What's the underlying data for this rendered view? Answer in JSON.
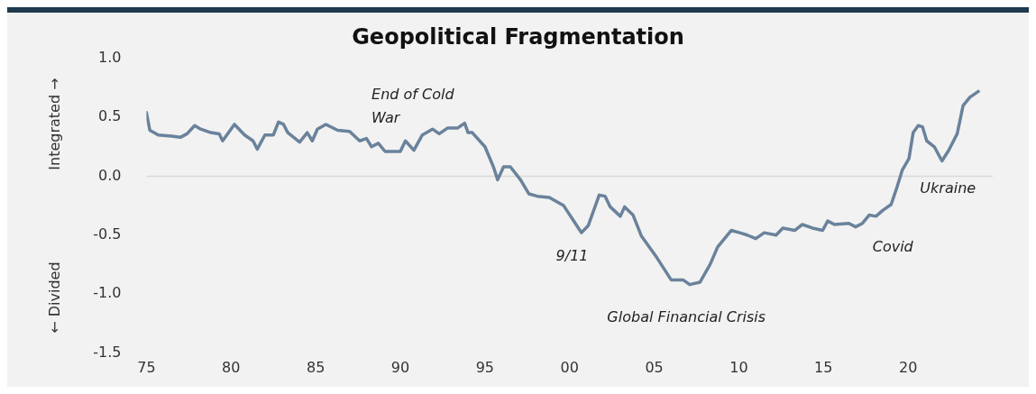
{
  "chart_data": {
    "type": "line",
    "title": "Geopolitical Fragmentation",
    "ylabel": "← Divided                    Integrated →",
    "x": [
      1975.0,
      1975.2,
      1975.7,
      1976.5,
      1977.0,
      1977.4,
      1977.85,
      1978.2,
      1978.8,
      1979.3,
      1979.5,
      1980.2,
      1980.8,
      1981.3,
      1981.55,
      1982.0,
      1982.5,
      1982.8,
      1983.1,
      1983.35,
      1984.05,
      1984.5,
      1984.8,
      1985.1,
      1985.6,
      1986.3,
      1987.0,
      1987.6,
      1988.0,
      1988.3,
      1988.7,
      1989.1,
      1989.6,
      1990.0,
      1990.3,
      1990.8,
      1991.3,
      1991.9,
      1992.3,
      1992.8,
      1993.4,
      1993.8,
      1994.0,
      1994.25,
      1995.0,
      1995.5,
      1995.75,
      1996.1,
      1996.5,
      1997.1,
      1997.6,
      1998.1,
      1998.8,
      1999.65,
      2000.2,
      2000.7,
      2001.1,
      2001.75,
      2002.1,
      2002.4,
      2003.0,
      2003.25,
      2003.75,
      2004.25,
      2005.15,
      2006.0,
      2006.7,
      2007.1,
      2007.7,
      2008.3,
      2008.75,
      2009.55,
      2010.05,
      2010.5,
      2011.0,
      2011.5,
      2012.2,
      2012.6,
      2013.3,
      2013.75,
      2014.35,
      2014.95,
      2015.25,
      2015.65,
      2016.5,
      2016.9,
      2017.3,
      2017.7,
      2018.1,
      2018.5,
      2019.0,
      2019.35,
      2019.65,
      2020.05,
      2020.3,
      2020.6,
      2020.85,
      2021.1,
      2021.55,
      2022.0,
      2022.4,
      2022.9,
      2023.25,
      2023.65,
      2024.15
    ],
    "series": [
      {
        "color": "#6a829b",
        "values": [
          0.54,
          0.39,
          0.35,
          0.34,
          0.33,
          0.36,
          0.43,
          0.4,
          0.37,
          0.36,
          0.3,
          0.44,
          0.35,
          0.3,
          0.23,
          0.35,
          0.35,
          0.46,
          0.44,
          0.37,
          0.29,
          0.37,
          0.3,
          0.4,
          0.44,
          0.39,
          0.38,
          0.3,
          0.32,
          0.25,
          0.28,
          0.21,
          0.21,
          0.21,
          0.3,
          0.22,
          0.35,
          0.4,
          0.36,
          0.41,
          0.41,
          0.45,
          0.37,
          0.37,
          0.25,
          0.08,
          -0.03,
          0.08,
          0.08,
          -0.03,
          -0.15,
          -0.17,
          -0.18,
          -0.25,
          -0.37,
          -0.48,
          -0.42,
          -0.16,
          -0.17,
          -0.26,
          -0.34,
          -0.26,
          -0.33,
          -0.51,
          -0.69,
          -0.88,
          -0.88,
          -0.92,
          -0.9,
          -0.75,
          -0.6,
          -0.46,
          -0.48,
          -0.5,
          -0.53,
          -0.48,
          -0.5,
          -0.44,
          -0.46,
          -0.41,
          -0.44,
          -0.46,
          -0.38,
          -0.41,
          -0.4,
          -0.43,
          -0.4,
          -0.33,
          -0.34,
          -0.29,
          -0.24,
          -0.09,
          0.05,
          0.15,
          0.37,
          0.43,
          0.42,
          0.3,
          0.25,
          0.13,
          0.22,
          0.36,
          0.6,
          0.67,
          0.72
        ]
      }
    ],
    "xlim": [
      1975,
      2025
    ],
    "xticks": [
      {
        "value": 1975,
        "label": "75"
      },
      {
        "value": 1980,
        "label": "80"
      },
      {
        "value": 1985,
        "label": "85"
      },
      {
        "value": 1990,
        "label": "90"
      },
      {
        "value": 1995,
        "label": "95"
      },
      {
        "value": 2000,
        "label": "00"
      },
      {
        "value": 2005,
        "label": "05"
      },
      {
        "value": 2010,
        "label": "10"
      },
      {
        "value": 2015,
        "label": "15"
      },
      {
        "value": 2020,
        "label": "20"
      }
    ],
    "ylim": [
      -1.5,
      1.0
    ],
    "yticks": [
      {
        "value": -1.5,
        "label": "-1.5"
      },
      {
        "value": -1.0,
        "label": "-1.0"
      },
      {
        "value": -0.5,
        "label": "-0.5"
      },
      {
        "value": 0,
        "label": "0.0"
      },
      {
        "value": 0.5,
        "label": "0.5"
      },
      {
        "value": 1.0,
        "label": "1.0"
      }
    ],
    "ref_lines": [
      {
        "axis": "y",
        "value": 0,
        "color": "#d9d9d9"
      }
    ],
    "annotations": [
      "End of Cold War",
      "9/11",
      "Global Financial Crisis",
      "Covid",
      "Ukraine"
    ],
    "grid": false,
    "legend": false,
    "marker": "none",
    "line_style": "solid"
  }
}
